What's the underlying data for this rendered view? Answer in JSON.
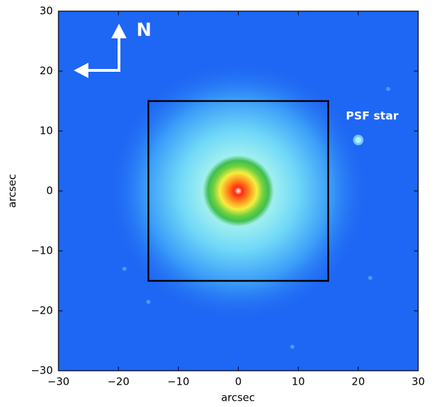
{
  "chart_data": {
    "type": "image",
    "xlabel": "arcsec",
    "ylabel": "arcsec",
    "xlim": [
      -30,
      30
    ],
    "ylim": [
      -30,
      30
    ],
    "xticks": [
      {
        "value": -30,
        "label": "−30"
      },
      {
        "value": -20,
        "label": "−20"
      },
      {
        "value": -10,
        "label": "−10"
      },
      0,
      10,
      20,
      30
    ],
    "yticks": [
      {
        "value": -30,
        "label": "−30"
      },
      {
        "value": -20,
        "label": "−20"
      },
      {
        "value": -10,
        "label": "−10"
      },
      0,
      10,
      20,
      30
    ],
    "box": {
      "x": [
        -15,
        15
      ],
      "y": [
        -15,
        15
      ]
    },
    "psf_star": {
      "x": 20,
      "y": 8.5,
      "label": "PSF star"
    },
    "compass_label": "N"
  }
}
